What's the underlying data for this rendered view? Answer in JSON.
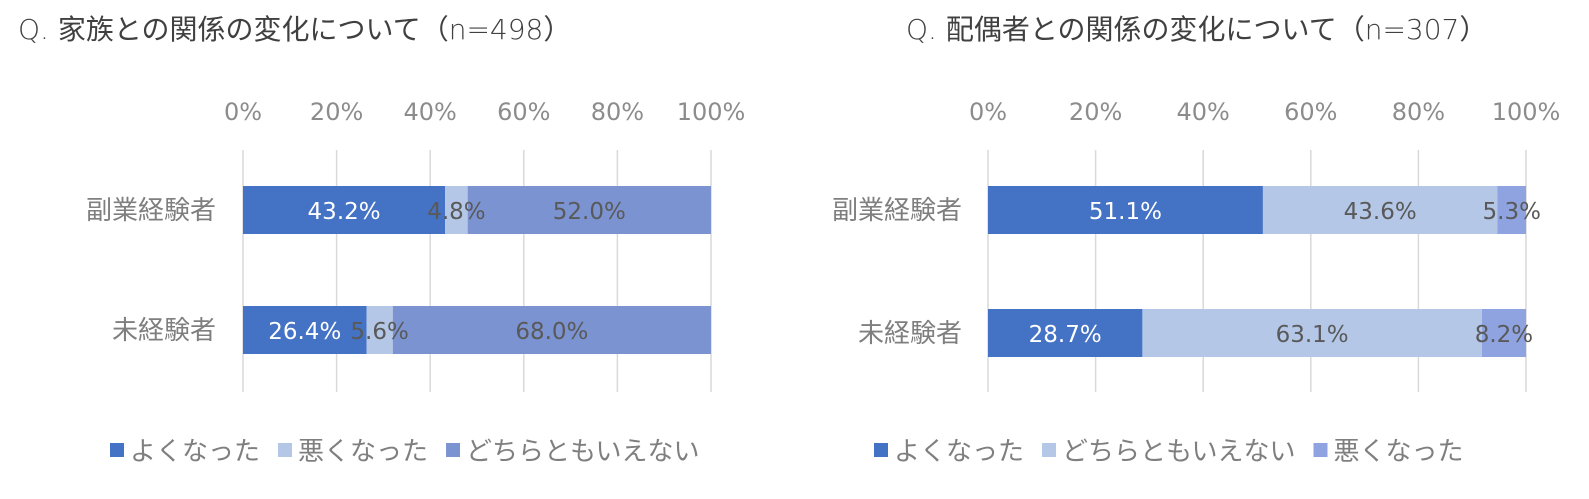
{
  "chart_data": [
    {
      "type": "bar",
      "orientation": "horizontal",
      "stacked": "percent",
      "title": "Q. 家族との関係の変化について（n=498）",
      "categories": [
        "副業経験者",
        "未経験者"
      ],
      "xlim": [
        0,
        100
      ],
      "x_ticks": [
        "0%",
        "20%",
        "40%",
        "60%",
        "80%",
        "100%"
      ],
      "grid": true,
      "legend_position": "bottom",
      "series": [
        {
          "name": "よくなった",
          "color": "#4472c4",
          "values": [
            43.2,
            26.4
          ],
          "labels": [
            "43.2%",
            "26.4%"
          ],
          "label_color": "#ffffff"
        },
        {
          "name": "悪くなった",
          "color": "#b4c7e7",
          "values": [
            4.8,
            5.6
          ],
          "labels": [
            "4.8%",
            "5.6%"
          ],
          "label_color": "#595959"
        },
        {
          "name": "どちらともいえない",
          "color": "#7b93d1",
          "values": [
            52.0,
            68.0
          ],
          "labels": [
            "52.0%",
            "68.0%"
          ],
          "label_color": "#595959"
        }
      ]
    },
    {
      "type": "bar",
      "orientation": "horizontal",
      "stacked": "percent",
      "title": "Q. 配偶者との関係の変化について（n=307）",
      "categories": [
        "副業経験者",
        "未経験者"
      ],
      "xlim": [
        0,
        100
      ],
      "x_ticks": [
        "0%",
        "20%",
        "40%",
        "60%",
        "80%",
        "100%"
      ],
      "grid": true,
      "legend_position": "bottom",
      "series": [
        {
          "name": "よくなった",
          "color": "#4472c4",
          "values": [
            51.1,
            28.7
          ],
          "labels": [
            "51.1%",
            "28.7%"
          ],
          "label_color": "#ffffff"
        },
        {
          "name": "どちらともいえない",
          "color": "#b4c7e7",
          "values": [
            43.6,
            63.1
          ],
          "labels": [
            "43.6%",
            "63.1%"
          ],
          "label_color": "#595959"
        },
        {
          "name": "悪くなった",
          "color": "#8ea3e0",
          "values": [
            5.3,
            8.2
          ],
          "labels": [
            "5.3%",
            "8.2%"
          ],
          "label_color": "#595959"
        }
      ]
    }
  ]
}
